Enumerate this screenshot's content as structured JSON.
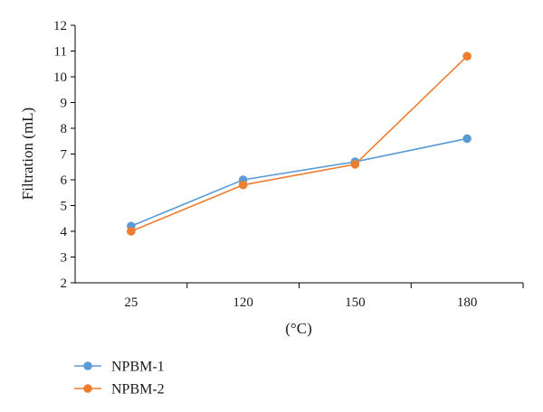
{
  "chart_data": {
    "type": "line",
    "categories": [
      "25",
      "120",
      "150",
      "180"
    ],
    "x_label": "(°C)",
    "y_label": "Filtration (mL)",
    "ylim": [
      2,
      12
    ],
    "y_ticks": [
      "2",
      "3",
      "4",
      "5",
      "6",
      "7",
      "8",
      "9",
      "10",
      "11",
      "12"
    ],
    "grid": false,
    "legend_position": "bottom-left",
    "series": [
      {
        "name": "NPBM-1",
        "color": "#5b9bd5",
        "values": [
          4.2,
          6.0,
          6.7,
          7.6
        ]
      },
      {
        "name": "NPBM-2",
        "color": "#ed7d31",
        "values": [
          4.0,
          5.8,
          6.6,
          10.8
        ]
      }
    ]
  }
}
